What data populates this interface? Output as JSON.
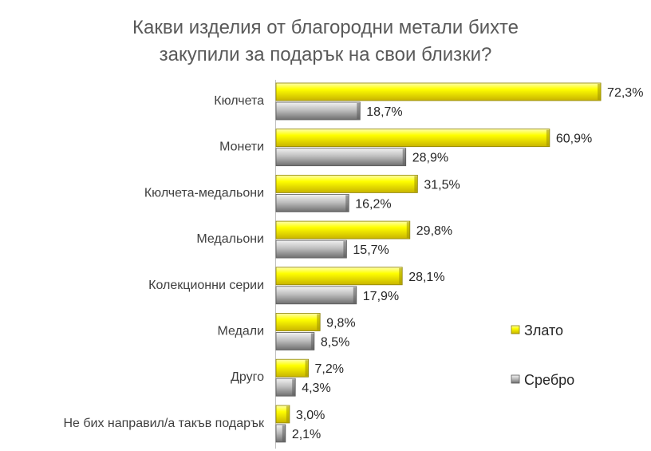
{
  "chart_data": {
    "type": "bar",
    "orientation": "horizontal",
    "title": [
      "Какви изделия от благородни метали бихте",
      "закупили за подарък на свои близки?"
    ],
    "categories": [
      "Кюлчета",
      "Монети",
      "Кюлчета-медальони",
      "Медальони",
      "Колекционни серии",
      "Медали",
      "Друго",
      "Не бих направил/а такъв подарък"
    ],
    "series": [
      {
        "name": "Злато",
        "color": "#FFFF00",
        "values": [
          72.3,
          60.9,
          31.5,
          29.8,
          28.1,
          9.8,
          7.2,
          3.0
        ],
        "labels": [
          "72,3%",
          "60,9%",
          "31,5%",
          "29,8%",
          "28,1%",
          "9,8%",
          "7,2%",
          "3,0%"
        ]
      },
      {
        "name": "Сребро",
        "color": "#A6A6A6",
        "values": [
          18.7,
          28.9,
          16.2,
          15.7,
          17.9,
          8.5,
          4.3,
          2.1
        ],
        "labels": [
          "18,7%",
          "28,9%",
          "16,2%",
          "15,7%",
          "17,9%",
          "8,5%",
          "4,3%",
          "2,1%"
        ]
      }
    ],
    "xlim": [
      0,
      80
    ],
    "grid": false,
    "legend_position": "right"
  }
}
